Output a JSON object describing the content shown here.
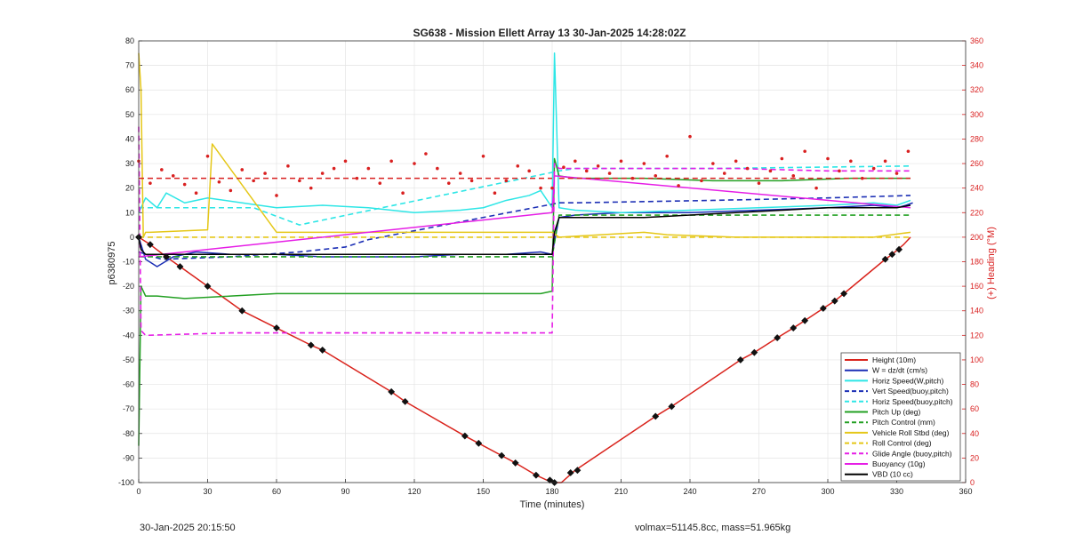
{
  "footer": {
    "timestamp": "30-Jan-2025 20:15:50",
    "mass_info": "volmax=51145.8cc, mass=51.965kg"
  },
  "chart_data": {
    "type": "line",
    "title": "SG638 - Mission Ellett Array 13 30-Jan-2025 14:28:02Z",
    "xlabel": "Time (minutes)",
    "ylabel_left": "p6380975",
    "ylabel_right": "(+) Heading (°M)",
    "xlim": [
      0,
      360
    ],
    "ylim_left": [
      -100,
      80
    ],
    "ylim_right": [
      0,
      360
    ],
    "xticks": [
      0,
      30,
      60,
      90,
      120,
      150,
      180,
      210,
      240,
      270,
      300,
      330,
      360
    ],
    "yticks_left": [
      -100,
      -90,
      -80,
      -70,
      -60,
      -50,
      -40,
      -30,
      -20,
      -10,
      0,
      10,
      20,
      30,
      40,
      50,
      60,
      70,
      80
    ],
    "yticks_right": [
      0,
      20,
      40,
      60,
      80,
      100,
      120,
      140,
      160,
      180,
      200,
      220,
      240,
      260,
      280,
      300,
      320,
      340,
      360
    ],
    "grid": true,
    "legend_position": "bottom-right",
    "colors": {
      "red": "#d9231c",
      "blue": "#1c2fb5",
      "cyan": "#2ee6e6",
      "green": "#23a023",
      "yellow": "#e5c718",
      "magenta": "#e61ee6",
      "black": "#000000",
      "heading": "#d92020"
    },
    "series": [
      {
        "name": "Height (10m)",
        "color": "red",
        "dash": false,
        "x": [
          0,
          5,
          12,
          18,
          30,
          45,
          60,
          75,
          80,
          110,
          116,
          142,
          148,
          158,
          164,
          173,
          180,
          184,
          190,
          225,
          232,
          262,
          268,
          278,
          285,
          290,
          298,
          303,
          307,
          325,
          328,
          333,
          336
        ],
        "y": [
          0,
          -3,
          -8,
          -12,
          -20,
          -30,
          -37,
          -44,
          -46,
          -63,
          -67,
          -81,
          -84,
          -89,
          -92,
          -97,
          -100,
          -100,
          -95,
          -73,
          -69,
          -50,
          -47,
          -41,
          -37,
          -34,
          -29,
          -26,
          -23,
          -9,
          -7,
          -3,
          0
        ]
      },
      {
        "name": "W = dz/dt (cm/s)",
        "color": "blue",
        "dash": false,
        "x": [
          0,
          3,
          8,
          15,
          25,
          40,
          60,
          80,
          100,
          120,
          140,
          160,
          175,
          180,
          183,
          190,
          210,
          240,
          270,
          300,
          320,
          330,
          334,
          337
        ],
        "y": [
          0,
          -9,
          -12,
          -8,
          -6,
          -7,
          -7,
          -8,
          -8,
          -8,
          -7,
          -7,
          -6,
          -7,
          8,
          9,
          10,
          10,
          11,
          12,
          13,
          12,
          13,
          14
        ]
      },
      {
        "name": "Horiz Speed(W,pitch)",
        "color": "cyan",
        "dash": false,
        "x": [
          0,
          3,
          8,
          12,
          20,
          30,
          45,
          60,
          80,
          100,
          120,
          140,
          150,
          160,
          170,
          175,
          180,
          181,
          183,
          190,
          210,
          240,
          270,
          300,
          320,
          330,
          336
        ],
        "y": [
          10,
          16,
          12,
          18,
          14,
          16,
          14,
          12,
          13,
          12,
          10,
          11,
          12,
          15,
          17,
          19,
          12,
          75,
          12,
          11,
          10,
          11,
          12,
          13,
          14,
          13,
          15
        ]
      },
      {
        "name": "Vert Speed(buoy,pitch)",
        "color": "blue",
        "dash": true,
        "x": [
          0,
          10,
          40,
          70,
          90,
          100,
          183,
          190,
          250,
          300,
          336
        ],
        "y": [
          -6,
          -9,
          -8,
          -6,
          -4,
          -1,
          14,
          14,
          15,
          16,
          17
        ]
      },
      {
        "name": "Horiz Speed(buoy,pitch)",
        "color": "cyan",
        "dash": true,
        "x": [
          0,
          20,
          50,
          70,
          183,
          190,
          250,
          336
        ],
        "y": [
          12,
          12,
          12,
          5,
          27,
          28,
          28,
          29
        ]
      },
      {
        "name": "Pitch Up (deg)",
        "color": "green",
        "dash": false,
        "x": [
          0,
          1,
          3,
          8,
          20,
          40,
          60,
          90,
          120,
          150,
          175,
          180,
          181,
          183,
          190,
          220,
          250,
          280,
          310,
          336
        ],
        "y": [
          -85,
          -20,
          -24,
          -24,
          -25,
          -24,
          -23,
          -23,
          -23,
          -23,
          -23,
          -22,
          32,
          25,
          24,
          24,
          23,
          23,
          24,
          24
        ]
      },
      {
        "name": "Pitch Control (mm)",
        "color": "green",
        "dash": true,
        "x": [
          0,
          180,
          183,
          336
        ],
        "y": [
          -8,
          -8,
          9,
          9
        ]
      },
      {
        "name": "Vehicle Roll Stbd (deg)",
        "color": "yellow",
        "dash": false,
        "x": [
          0,
          1,
          2,
          3,
          5,
          30,
          32,
          60,
          90,
          120,
          150,
          175,
          180,
          183,
          220,
          230,
          260,
          290,
          320,
          336
        ],
        "y": [
          75,
          60,
          0,
          2,
          2,
          3,
          38,
          2,
          2,
          2,
          2,
          2,
          2,
          0,
          2,
          1,
          0,
          0,
          0,
          2
        ]
      },
      {
        "name": "Roll Control (deg)",
        "color": "yellow",
        "dash": true,
        "x": [
          0,
          180,
          183,
          336
        ],
        "y": [
          0,
          0,
          0,
          0
        ]
      },
      {
        "name": "Glide Angle (buoy,pitch)",
        "color": "magenta",
        "dash": true,
        "x": [
          0,
          1,
          3,
          40,
          80,
          120,
          150,
          165,
          170,
          175,
          180,
          181,
          183,
          220,
          260,
          300,
          330,
          336
        ],
        "y": [
          45,
          -38,
          -40,
          -39,
          -39,
          -39,
          -39,
          -39,
          -39,
          -39,
          -39,
          30,
          28,
          28,
          28,
          27,
          27,
          27
        ]
      },
      {
        "name": "Buoyancy (10g)",
        "color": "magenta",
        "dash": false,
        "x": [
          0,
          180,
          181,
          336
        ],
        "y": [
          -8,
          10,
          25,
          12
        ]
      },
      {
        "name": "VBD (10 cc)",
        "color": "black",
        "dash": false,
        "x": [
          0,
          1,
          2,
          3,
          180,
          181,
          183,
          200,
          220,
          260,
          300,
          330,
          336
        ],
        "y": [
          0,
          -5,
          -6,
          -7,
          -7,
          2,
          8,
          8,
          8,
          10,
          12,
          12,
          13
        ]
      }
    ],
    "heading": {
      "name": "(+) Heading (°M)",
      "color": "heading",
      "axis": "right",
      "x": [
        0,
        5,
        10,
        15,
        20,
        25,
        30,
        35,
        40,
        45,
        50,
        55,
        60,
        65,
        70,
        75,
        80,
        85,
        90,
        95,
        100,
        105,
        110,
        115,
        120,
        125,
        130,
        135,
        140,
        145,
        150,
        155,
        160,
        165,
        170,
        175,
        180,
        185,
        190,
        195,
        200,
        205,
        210,
        215,
        220,
        225,
        230,
        235,
        240,
        245,
        250,
        255,
        260,
        265,
        270,
        275,
        280,
        285,
        290,
        295,
        300,
        305,
        310,
        315,
        320,
        325,
        330,
        335
      ],
      "y": [
        262,
        244,
        255,
        250,
        243,
        236,
        266,
        245,
        238,
        255,
        246,
        252,
        234,
        258,
        246,
        240,
        252,
        256,
        262,
        248,
        256,
        244,
        262,
        236,
        260,
        268,
        256,
        244,
        252,
        246,
        266,
        236,
        246,
        258,
        254,
        240,
        240,
        257,
        262,
        254,
        258,
        252,
        262,
        248,
        260,
        250,
        266,
        242,
        282,
        246,
        260,
        252,
        262,
        256,
        244,
        254,
        264,
        250,
        270,
        240,
        264,
        254,
        262,
        248,
        256,
        262,
        252,
        270
      ]
    },
    "heading_reference": {
      "color": "heading",
      "segments": [
        {
          "x": [
            0,
            180
          ],
          "y": 248
        },
        {
          "x": [
            183,
            336
          ],
          "y": 248
        }
      ]
    },
    "markers": {
      "color": "black",
      "x": [
        0,
        5,
        12,
        18,
        30,
        45,
        60,
        75,
        80,
        110,
        116,
        142,
        148,
        158,
        164,
        173,
        179,
        181,
        188,
        191,
        225,
        232,
        262,
        268,
        278,
        285,
        290,
        298,
        303,
        307,
        325,
        328,
        331
      ],
      "y": [
        0,
        -3,
        -8,
        -12,
        -20,
        -30,
        -37,
        -44,
        -46,
        -63,
        -67,
        -81,
        -84,
        -89,
        -92,
        -97,
        -99,
        -100,
        -96,
        -95,
        -73,
        -69,
        -50,
        -47,
        -41,
        -37,
        -34,
        -29,
        -26,
        -23,
        -9,
        -7,
        -5
      ]
    }
  }
}
